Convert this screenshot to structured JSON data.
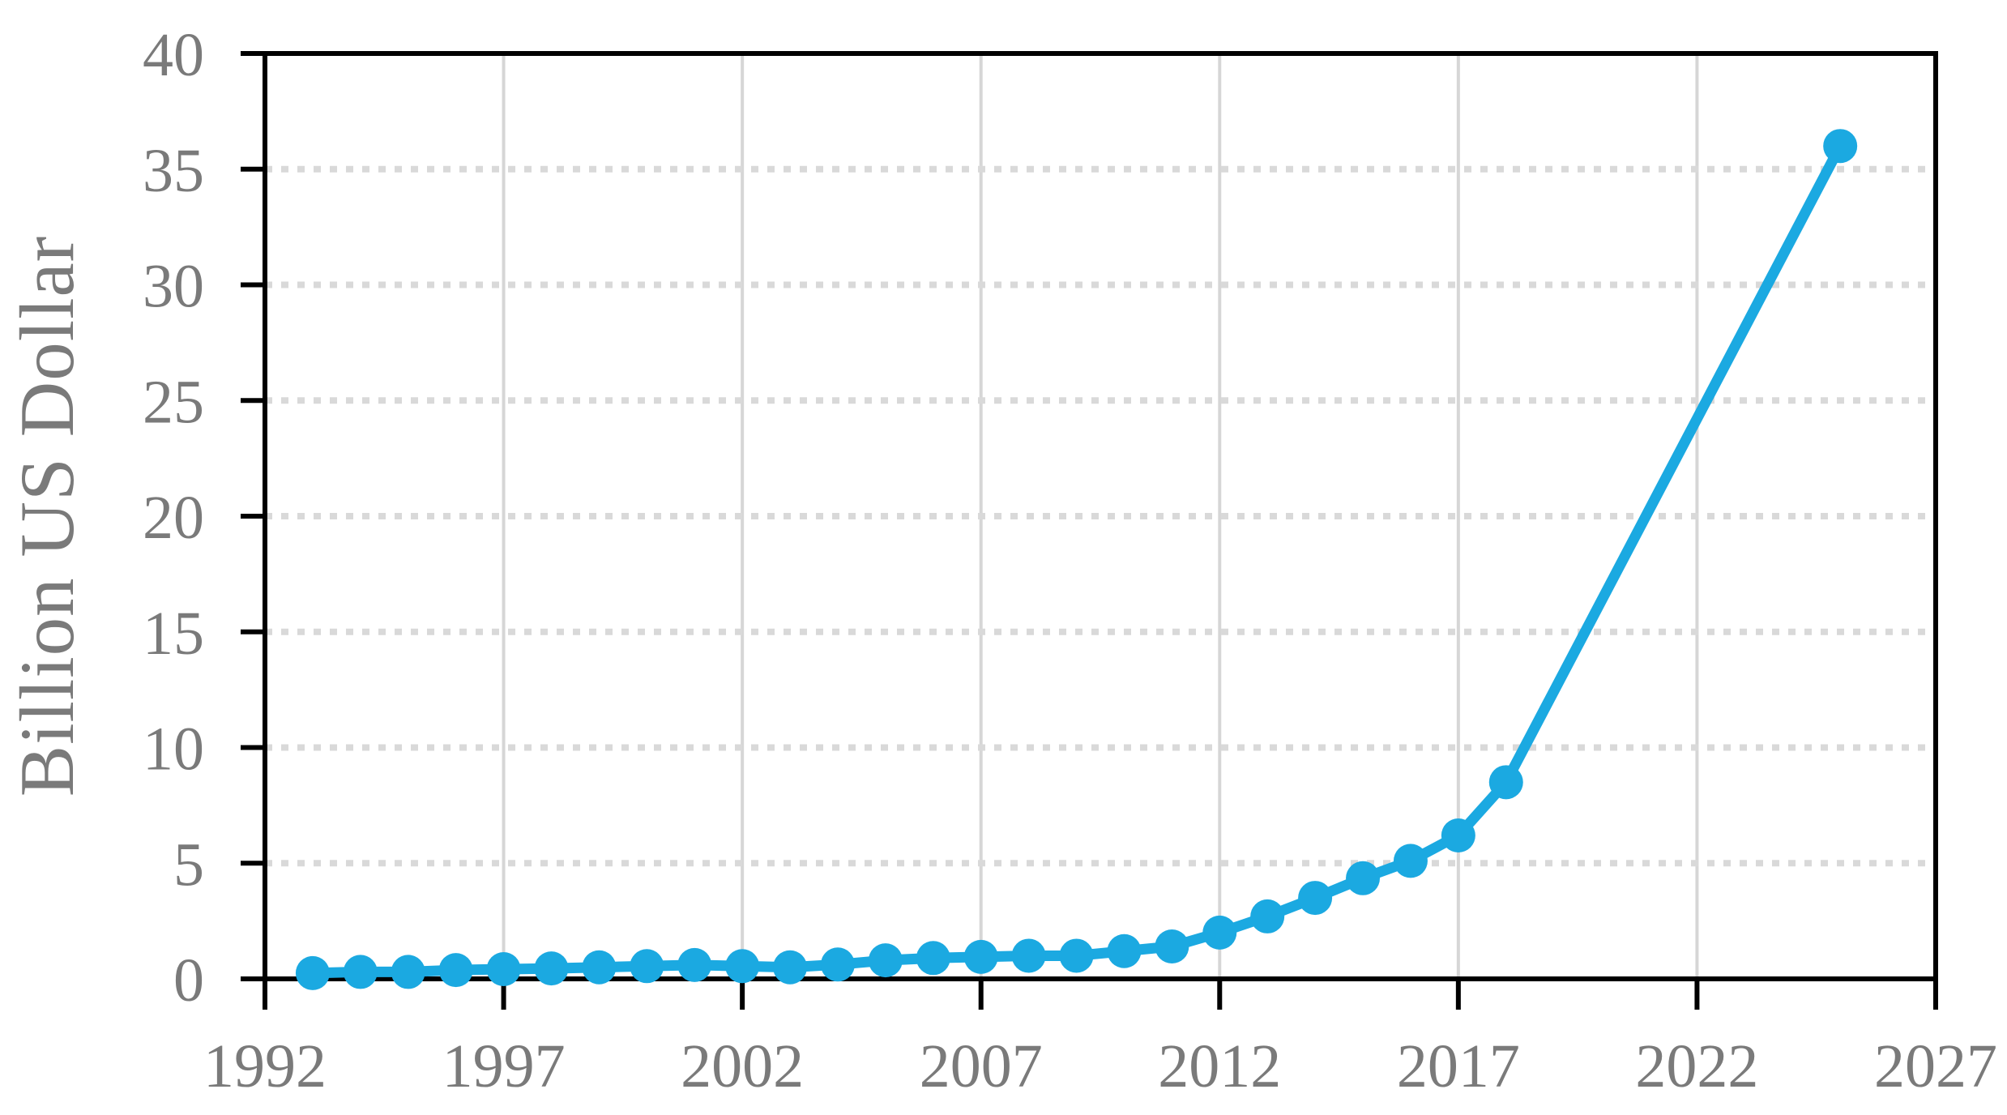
{
  "chart_data": {
    "type": "line",
    "title": "",
    "xlabel": "",
    "ylabel": "Billion US Dollar",
    "x": [
      1993,
      1994,
      1995,
      1996,
      1997,
      1998,
      1999,
      2000,
      2001,
      2002,
      2003,
      2004,
      2005,
      2006,
      2007,
      2008,
      2009,
      2010,
      2011,
      2012,
      2013,
      2014,
      2015,
      2016,
      2017,
      2018,
      2025
    ],
    "values": [
      0.25,
      0.3,
      0.3,
      0.38,
      0.42,
      0.45,
      0.5,
      0.55,
      0.6,
      0.55,
      0.5,
      0.62,
      0.8,
      0.9,
      0.95,
      1.0,
      1.0,
      1.2,
      1.4,
      2.0,
      2.7,
      3.5,
      4.35,
      5.1,
      6.2,
      8.5,
      36
    ],
    "series_name": "",
    "xlim": [
      1992,
      2027
    ],
    "ylim": [
      0,
      40
    ],
    "xticks": [
      1992,
      1997,
      2002,
      2007,
      2012,
      2017,
      2022,
      2027
    ],
    "yticks": [
      0,
      5,
      10,
      15,
      20,
      25,
      30,
      35,
      40
    ],
    "grid": {
      "vertical": "solid",
      "horizontal": "dotted"
    },
    "legend_position": "none",
    "marker": "circle",
    "colors": {
      "line": "#1BA9E1",
      "axis": "#000000",
      "grid_vertical": "#D6D6D6",
      "grid_horizontal": "#D9D9D9",
      "labels": "#7A7A7A",
      "background": "#FFFFFF"
    }
  }
}
